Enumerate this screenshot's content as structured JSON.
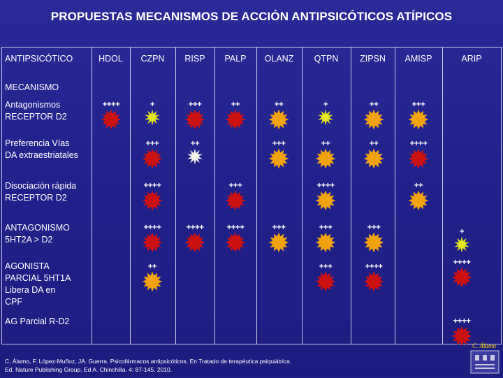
{
  "title": "PROPUESTAS MECANISMOS DE ACCIÓN ANTIPSICÓTICOS ATÍPICOS",
  "header": {
    "first": "ANTIPSICÓTICO",
    "drugs": [
      "HDOL",
      "CZPN",
      "RISP",
      "PALP",
      "OLANZ",
      "QTPN",
      "ZIPSN",
      "AMISP",
      "ARIP"
    ]
  },
  "rows": [
    {
      "label": "MECANISMO"
    },
    {
      "label": "Antagonismos RECEPTOR D2"
    },
    {
      "label": "Preferencia Vías DA extraestriatales"
    },
    {
      "label": "Disociación rápida RECEPTOR D2"
    },
    {
      "label": "ANTAGONISMO 5HT2A > D2"
    },
    {
      "label": "AGONISTA PARCIAL 5HT1A Libera DA en CPF"
    },
    {
      "label": "AG Parcial R-D2"
    }
  ],
  "cells": {
    "d2": [
      {
        "text": "++++",
        "color": "red"
      },
      {
        "text": "+",
        "color": "yellow"
      },
      {
        "text": "+++",
        "color": "red"
      },
      {
        "text": "++",
        "color": "red"
      },
      {
        "text": "++",
        "color": "orange"
      },
      {
        "text": "+",
        "color": "yellow"
      },
      {
        "text": "++",
        "color": "orange"
      },
      {
        "text": "+++",
        "color": "orange"
      }
    ],
    "pref": [
      {
        "text": "+++",
        "color": "red"
      },
      {
        "text": "++",
        "color": "white"
      },
      {
        "text": "+++",
        "color": "orange"
      },
      {
        "text": "++",
        "color": "orange"
      },
      {
        "text": "++",
        "color": "orange"
      },
      {
        "text": "++++",
        "color": "red"
      }
    ],
    "dis": [
      {
        "text": "++++",
        "color": "red"
      },
      {
        "text": "+++",
        "color": "red"
      },
      {
        "text": "++++",
        "color": "orange"
      },
      {
        "text": "++",
        "color": "orange"
      }
    ],
    "ant": [
      {
        "text": "++++",
        "color": "red"
      },
      {
        "text": "++++",
        "color": "red"
      },
      {
        "text": "++++",
        "color": "red"
      },
      {
        "text": "+++",
        "color": "orange"
      },
      {
        "text": "+++",
        "color": "orange"
      },
      {
        "text": "+++",
        "color": "orange"
      },
      {
        "text": "+",
        "color": "yellow"
      }
    ],
    "ago": [
      {
        "text": "++",
        "color": "orange"
      },
      {
        "text": "+++",
        "color": "red"
      },
      {
        "text": "++++",
        "color": "red"
      },
      {
        "text": "++++",
        "color": "red"
      }
    ],
    "agp": [
      {
        "text": "++++",
        "color": "red"
      }
    ]
  },
  "citation": {
    "line1": "C.  Álamo, F. López-Muñoz, JA. Guerra. Psicofármacos antipsicóticos.  En Tratado de terapéutica psiquiátrica.",
    "line2": "Ed. Nature Publishing Group. Ed A. Chinchilla. 4: 87-145. 2010."
  },
  "logo_text": "C. Álamo",
  "colors": {
    "background": "#20208a",
    "red": "#cc1111",
    "orange": "#f2a20c",
    "yellow": "#e3e61a",
    "white": "#f4f4e8"
  }
}
